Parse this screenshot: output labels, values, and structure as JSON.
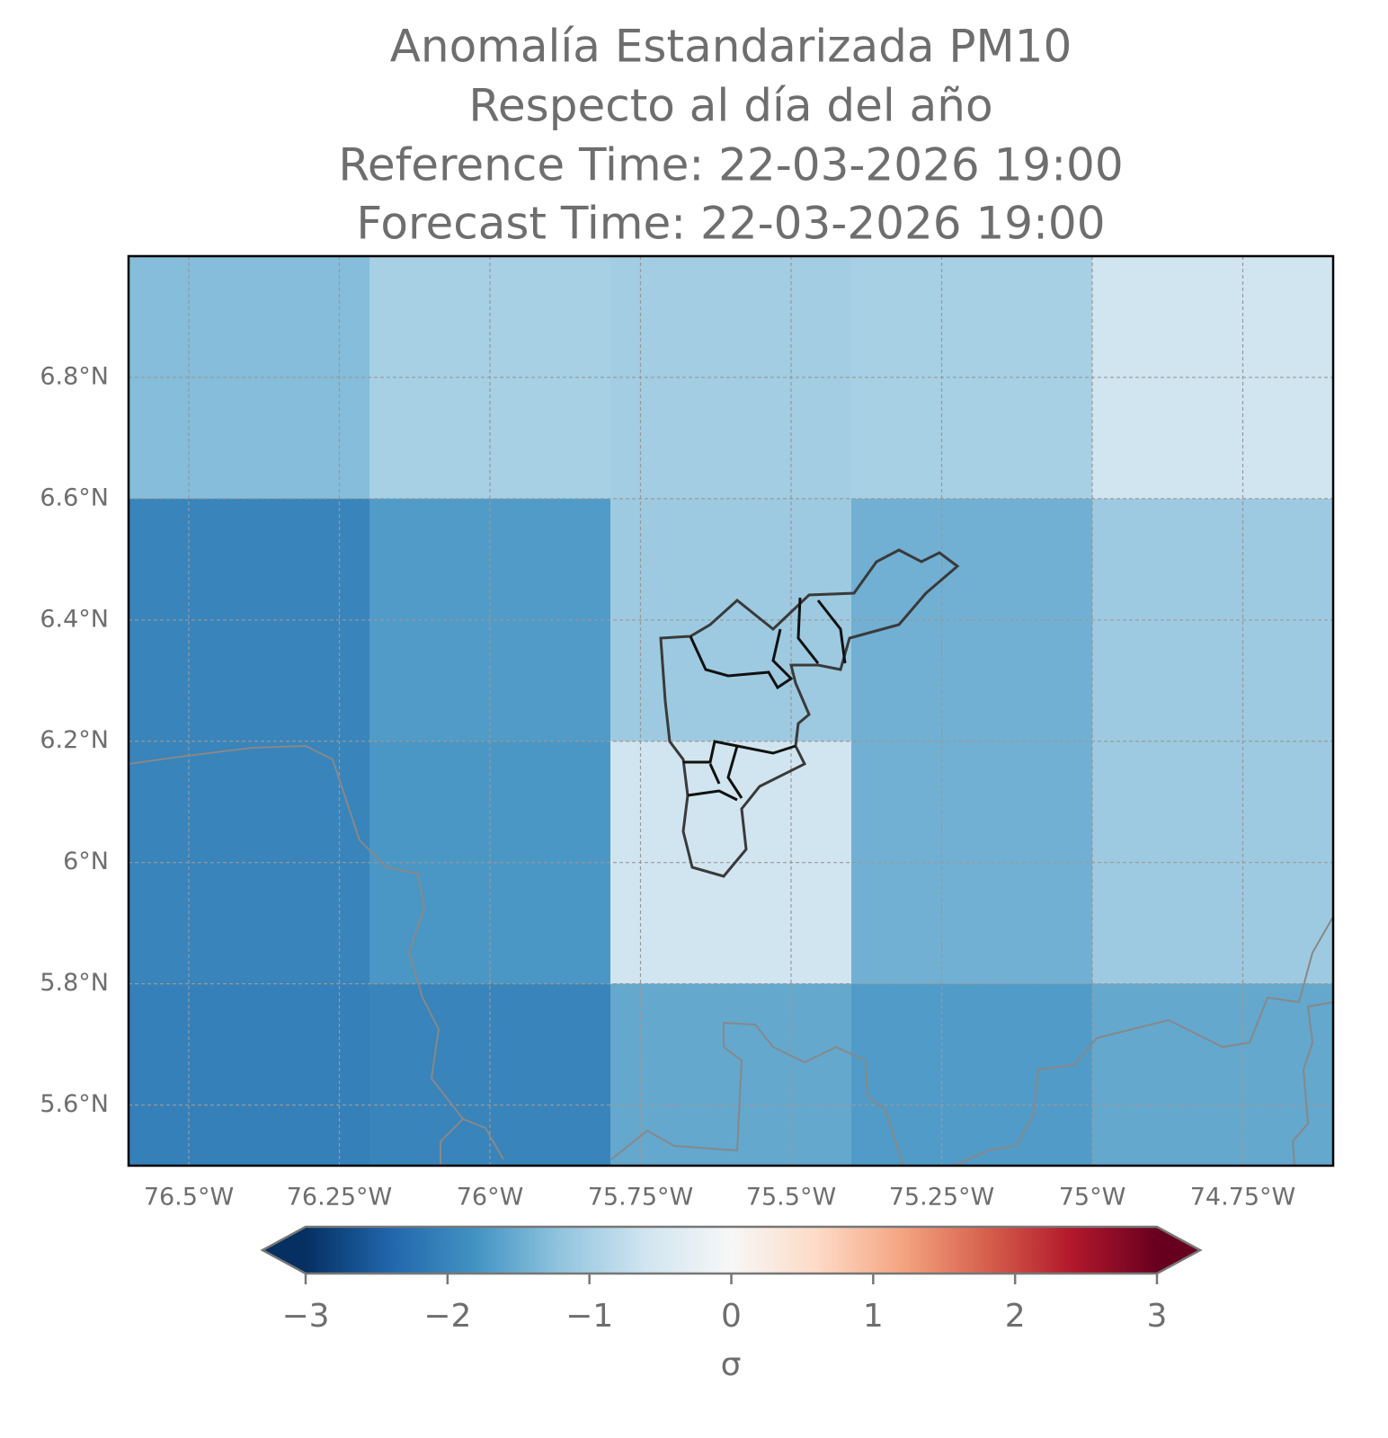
{
  "chart_data": {
    "type": "heatmap",
    "title": [
      "Anomalía Estandarizada PM10",
      "Respecto al día del año",
      "Reference Time: 22-03-2026 19:00",
      "Forecast Time: 22-03-2026 19:00"
    ],
    "xlim": [
      -76.6,
      -74.6
    ],
    "ylim": [
      5.5,
      7.0
    ],
    "xticks": [
      {
        "value": -76.5,
        "label": "76.5°W"
      },
      {
        "value": -76.25,
        "label": "76.25°W"
      },
      {
        "value": -76.0,
        "label": "76°W"
      },
      {
        "value": -75.75,
        "label": "75.75°W"
      },
      {
        "value": -75.5,
        "label": "75.5°W"
      },
      {
        "value": -75.25,
        "label": "75.25°W"
      },
      {
        "value": -75.0,
        "label": "75°W"
      },
      {
        "value": -74.75,
        "label": "74.75°W"
      }
    ],
    "yticks": [
      {
        "value": 5.6,
        "label": "5.6°N"
      },
      {
        "value": 5.8,
        "label": "5.8°N"
      },
      {
        "value": 6.0,
        "label": "6°N"
      },
      {
        "value": 6.2,
        "label": "6.2°N"
      },
      {
        "value": 6.4,
        "label": "6.4°N"
      },
      {
        "value": 6.6,
        "label": "6.6°N"
      },
      {
        "value": 6.8,
        "label": "6.8°N"
      }
    ],
    "grid": true,
    "x_edges": [
      -76.6,
      -76.2,
      -75.8,
      -75.4,
      -75.0,
      -74.6
    ],
    "y_edges": [
      7.0,
      6.6,
      6.2,
      5.8,
      5.4
    ],
    "values": [
      [
        -1.3,
        -1.0,
        -1.05,
        -1.0,
        -0.6
      ],
      [
        -2.0,
        -1.7,
        -1.1,
        -1.45,
        -1.1
      ],
      [
        -2.0,
        -1.75,
        -0.6,
        -1.45,
        -1.1
      ],
      [
        -2.05,
        -2.0,
        -1.55,
        -1.7,
        -1.55
      ]
    ],
    "colormap": "RdBu_r",
    "clim": [
      -3,
      3
    ],
    "colorbar_ticks": [
      {
        "value": -3,
        "label": "−3"
      },
      {
        "value": -2,
        "label": "−2"
      },
      {
        "value": -1,
        "label": "−1"
      },
      0,
      1,
      2,
      3
    ],
    "colorbar_label": "σ"
  }
}
